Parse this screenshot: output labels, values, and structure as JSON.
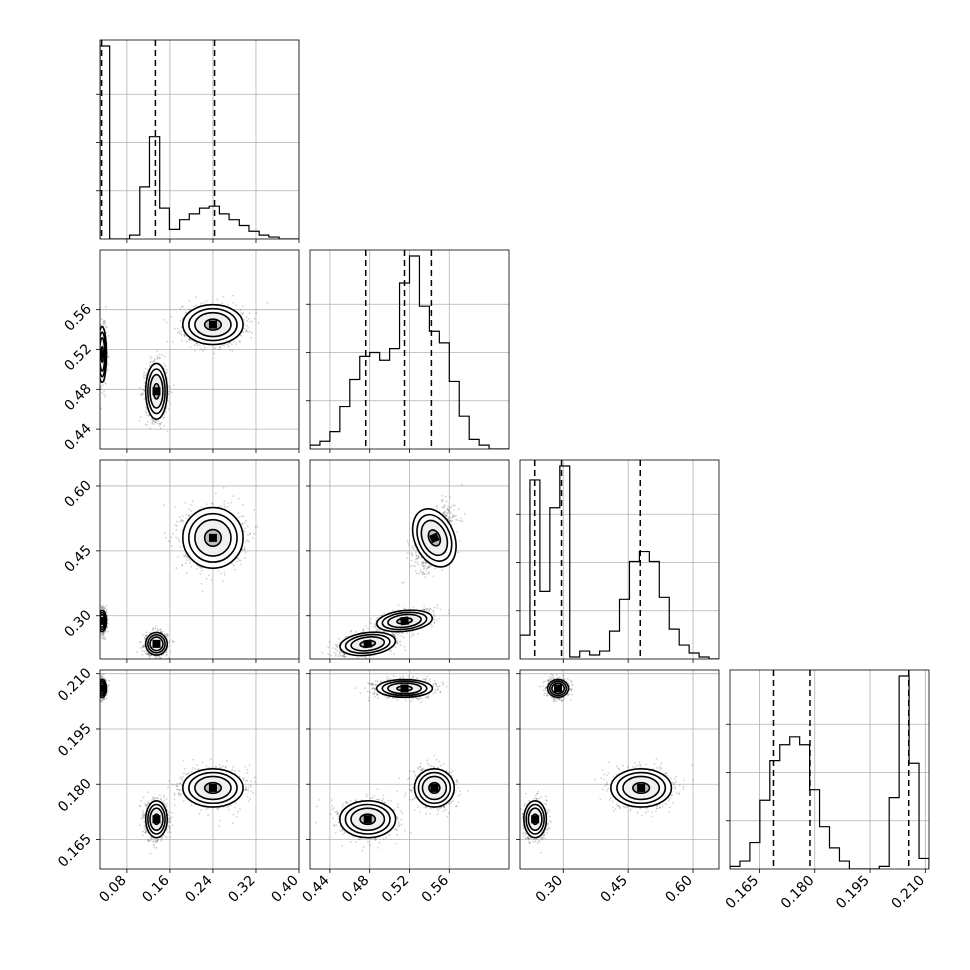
{
  "chart_data": {
    "type": "corner",
    "grid": true,
    "parameters": [
      {
        "range": [
          0.03,
          0.4
        ],
        "ticks": [
          0.08,
          0.16,
          0.24,
          0.32,
          0.4
        ],
        "tick_labels": [
          "0.08",
          "0.16",
          "0.24",
          "0.32",
          "0.40"
        ],
        "quantiles": [
          0.033,
          0.133,
          0.243
        ],
        "hist_edges": [
          0.03,
          0.048,
          0.067,
          0.085,
          0.104,
          0.122,
          0.141,
          0.159,
          0.178,
          0.196,
          0.215,
          0.233,
          0.252,
          0.27,
          0.289,
          0.307,
          0.326,
          0.344,
          0.363,
          0.381,
          0.4
        ],
        "hist_counts": [
          1.0,
          0.0,
          0.0,
          0.02,
          0.27,
          0.53,
          0.16,
          0.05,
          0.1,
          0.13,
          0.16,
          0.17,
          0.13,
          0.1,
          0.07,
          0.04,
          0.02,
          0.01,
          0.0,
          0.0
        ]
      },
      {
        "range": [
          0.42,
          0.62
        ],
        "ticks": [
          0.44,
          0.48,
          0.52,
          0.56
        ],
        "tick_labels": [
          "0.44",
          "0.48",
          "0.52",
          "0.56"
        ],
        "quantiles": [
          0.476,
          0.515,
          0.542
        ],
        "hist_edges": [
          0.42,
          0.43,
          0.44,
          0.45,
          0.46,
          0.47,
          0.48,
          0.49,
          0.5,
          0.51,
          0.52,
          0.53,
          0.54,
          0.55,
          0.56,
          0.57,
          0.58,
          0.59,
          0.6,
          0.61,
          0.62
        ],
        "hist_counts": [
          0.02,
          0.04,
          0.09,
          0.22,
          0.36,
          0.48,
          0.5,
          0.46,
          0.52,
          0.86,
          1.0,
          0.74,
          0.61,
          0.55,
          0.35,
          0.17,
          0.05,
          0.02,
          0.0,
          0.0
        ]
      },
      {
        "range": [
          0.2,
          0.66
        ],
        "ticks": [
          0.3,
          0.45,
          0.6
        ],
        "tick_labels": [
          "0.30",
          "0.45",
          "0.60"
        ],
        "quantiles": [
          0.234,
          0.296,
          0.478
        ],
        "hist_edges": [
          0.2,
          0.223,
          0.246,
          0.269,
          0.292,
          0.315,
          0.338,
          0.361,
          0.384,
          0.407,
          0.43,
          0.453,
          0.476,
          0.499,
          0.522,
          0.545,
          0.568,
          0.591,
          0.614,
          0.637,
          0.66
        ],
        "hist_counts": [
          0.12,
          0.9,
          0.34,
          0.76,
          0.97,
          0.01,
          0.04,
          0.02,
          0.04,
          0.14,
          0.3,
          0.49,
          0.54,
          0.49,
          0.31,
          0.15,
          0.07,
          0.03,
          0.01,
          0.0
        ]
      },
      {
        "range": [
          0.157,
          0.211
        ],
        "ticks": [
          0.165,
          0.18,
          0.195,
          0.21
        ],
        "tick_labels": [
          "0.165",
          "0.180",
          "0.195",
          "0.210"
        ],
        "quantiles": [
          0.1688,
          0.1787,
          0.2055
        ],
        "hist_edges": [
          0.157,
          0.1597,
          0.1624,
          0.1651,
          0.1678,
          0.1705,
          0.1732,
          0.1759,
          0.1786,
          0.1813,
          0.184,
          0.1867,
          0.1894,
          0.1921,
          0.1948,
          0.1975,
          0.2002,
          0.2029,
          0.2056,
          0.2083,
          0.211
        ],
        "hist_counts": [
          0.01,
          0.03,
          0.1,
          0.26,
          0.41,
          0.47,
          0.5,
          0.47,
          0.3,
          0.16,
          0.08,
          0.03,
          0.0,
          0.0,
          0.0,
          0.01,
          0.27,
          0.73,
          0.4,
          0.04
        ]
      }
    ],
    "modes": [
      {
        "mean": [
          0.034,
          0.515,
          0.288,
          0.206
        ],
        "sd": [
          0.004,
          0.014,
          0.012,
          0.0012
        ]
      },
      {
        "mean": [
          0.135,
          0.478,
          0.235,
          0.1705
        ],
        "sd": [
          0.01,
          0.014,
          0.013,
          0.0025
        ]
      },
      {
        "mean": [
          0.24,
          0.545,
          0.48,
          0.179
        ],
        "sd": [
          0.028,
          0.01,
          0.035,
          0.0026
        ]
      }
    ]
  }
}
